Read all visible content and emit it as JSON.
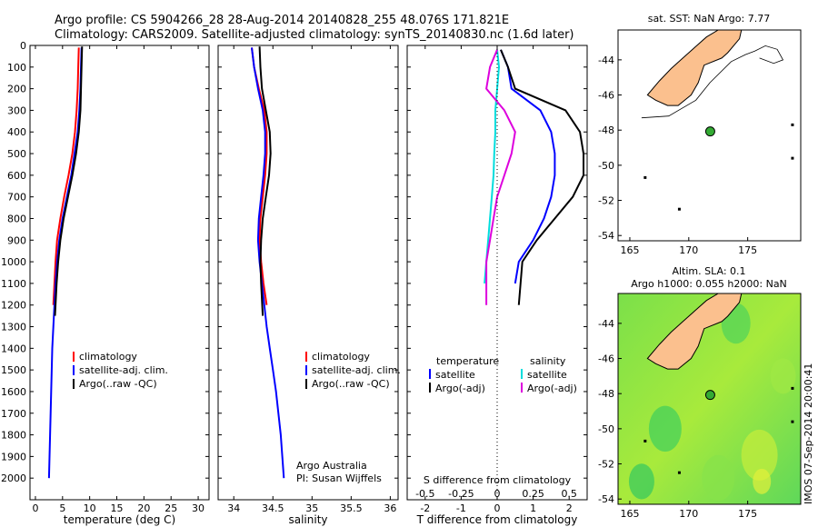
{
  "header": {
    "line1": "Argo profile: CS 5904266_28 28-Aug-2014 20140828_255 48.076S 171.821E",
    "line2": "Climatology: CARS2009. Satellite-adjusted climatology: synTS_20140830.nc (1.6d later)"
  },
  "chart_data": [
    {
      "type": "line",
      "panel": "temperature",
      "xlabel": "temperature (deg C)",
      "ylabel": "",
      "xlim": [
        -1,
        32
      ],
      "ylim": [
        2100,
        0
      ],
      "y_reversed": true,
      "xticks": [
        0,
        5,
        10,
        15,
        20,
        25,
        30
      ],
      "yticks": [
        0,
        100,
        200,
        300,
        400,
        500,
        600,
        700,
        800,
        900,
        1000,
        1100,
        1200,
        1300,
        1400,
        1500,
        1600,
        1700,
        1800,
        1900,
        2000
      ],
      "legend": [
        "climatology",
        "satellite-adj. clim.",
        "Argo(..raw -QC)"
      ],
      "series": [
        {
          "name": "climatology",
          "color": "#ff0000",
          "x": [
            8.0,
            7.9,
            7.8,
            7.6,
            7.3,
            6.8,
            6.1,
            5.3,
            4.6,
            4.0,
            3.7,
            3.5,
            3.3
          ],
          "y": [
            10,
            100,
            200,
            300,
            400,
            500,
            600,
            700,
            800,
            900,
            1000,
            1100,
            1200
          ]
        },
        {
          "name": "satellite-adj. clim.",
          "color": "#0000ff",
          "x": [
            8.5,
            8.4,
            8.3,
            8.1,
            7.8,
            7.2,
            6.6,
            5.8,
            5.0,
            4.4,
            4.0,
            3.7,
            3.5,
            3.3,
            3.1,
            3.0,
            2.9,
            2.8,
            2.7,
            2.6,
            2.5
          ],
          "y": [
            10,
            100,
            200,
            300,
            400,
            500,
            600,
            700,
            800,
            900,
            1000,
            1100,
            1200,
            1300,
            1400,
            1500,
            1600,
            1700,
            1800,
            1900,
            2000
          ]
        },
        {
          "name": "Argo(..raw -QC)",
          "color": "#000000",
          "x": [
            8.6,
            8.5,
            8.4,
            8.3,
            8.0,
            7.5,
            6.8,
            6.0,
            5.2,
            4.6,
            4.2,
            3.9,
            3.6
          ],
          "y": [
            5,
            100,
            200,
            300,
            400,
            500,
            600,
            700,
            800,
            900,
            1000,
            1100,
            1250
          ]
        }
      ]
    },
    {
      "type": "line",
      "panel": "salinity",
      "xlabel": "salinity",
      "xlim": [
        33.8,
        36.1
      ],
      "ylim": [
        2100,
        0
      ],
      "y_reversed": true,
      "xticks": [
        34,
        34.5,
        35,
        35.5,
        36
      ],
      "legend": [
        "climatology",
        "satellite-adj. clim.",
        "Argo(..raw -QC)"
      ],
      "annotation": [
        "Argo Australia",
        "PI: Susan Wijffels"
      ],
      "series": [
        {
          "name": "climatology",
          "color": "#ff0000",
          "x": [
            34.23,
            34.26,
            34.32,
            34.39,
            34.42,
            34.42,
            34.4,
            34.37,
            34.34,
            34.33,
            34.35,
            34.38,
            34.42
          ],
          "y": [
            10,
            100,
            200,
            300,
            400,
            500,
            600,
            700,
            800,
            900,
            1000,
            1100,
            1200
          ]
        },
        {
          "name": "satellite-adj. clim.",
          "color": "#0000ff",
          "x": [
            34.23,
            34.26,
            34.31,
            34.37,
            34.4,
            34.4,
            34.38,
            34.35,
            34.32,
            34.31,
            34.33,
            34.36,
            34.39,
            34.42,
            34.46,
            34.5,
            34.54,
            34.57,
            34.6,
            34.62,
            34.64
          ],
          "y": [
            10,
            100,
            200,
            300,
            400,
            500,
            600,
            700,
            800,
            900,
            1000,
            1100,
            1200,
            1300,
            1400,
            1500,
            1600,
            1700,
            1800,
            1900,
            2000
          ]
        },
        {
          "name": "Argo(..raw -QC)",
          "color": "#000000",
          "x": [
            34.33,
            34.34,
            34.36,
            34.41,
            34.46,
            34.47,
            34.45,
            34.41,
            34.37,
            34.35,
            34.34,
            34.35,
            34.37
          ],
          "y": [
            5,
            100,
            200,
            300,
            400,
            500,
            600,
            700,
            800,
            900,
            1000,
            1100,
            1250
          ]
        }
      ]
    },
    {
      "type": "line",
      "panel": "difference",
      "xlabel": "T difference from climatology",
      "xlabel_top": "S difference from climatology",
      "xlim": [
        -2.5,
        2.5
      ],
      "ylim": [
        2100,
        0
      ],
      "y_reversed": true,
      "xticks": [
        -2,
        -1,
        0,
        1,
        2
      ],
      "s_xticks": [
        "-0.5",
        "-0.25",
        "0",
        "0.25",
        "0.5"
      ],
      "legend_temperature": {
        "title": "temperature",
        "items": [
          "satellite",
          "Argo(-adj)"
        ]
      },
      "legend_salinity": {
        "title": "salinity",
        "items": [
          "satellite",
          "Argo(-adj)"
        ]
      },
      "series": [
        {
          "name": "temperature satellite",
          "color": "#0000ff",
          "x": [
            0.1,
            0.3,
            0.4,
            1.2,
            1.5,
            1.6,
            1.6,
            1.5,
            1.3,
            1.0,
            0.6,
            0.5
          ],
          "y": [
            20,
            100,
            200,
            300,
            400,
            500,
            600,
            700,
            800,
            900,
            1000,
            1100
          ]
        },
        {
          "name": "temperature Argo(-adj)",
          "color": "#000000",
          "x": [
            0.1,
            0.3,
            0.5,
            1.9,
            2.3,
            2.4,
            2.4,
            2.1,
            1.6,
            1.1,
            0.7,
            0.6
          ],
          "y": [
            20,
            100,
            200,
            300,
            400,
            500,
            600,
            700,
            800,
            900,
            1000,
            1200
          ]
        },
        {
          "name": "salinity satellite",
          "color": "#00dddd",
          "x": [
            0.0,
            0.05,
            0.0,
            -0.05,
            -0.05,
            -0.08,
            -0.1,
            -0.15,
            -0.2,
            -0.25,
            -0.3,
            -0.35
          ],
          "y": [
            20,
            100,
            200,
            300,
            400,
            500,
            600,
            700,
            800,
            900,
            1000,
            1100
          ]
        },
        {
          "name": "salinity Argo(-adj)",
          "color": "#dd00dd",
          "x": [
            0.0,
            -0.2,
            -0.3,
            0.2,
            0.5,
            0.4,
            0.2,
            0.0,
            -0.1,
            -0.2,
            -0.3,
            -0.3
          ],
          "y": [
            20,
            100,
            200,
            300,
            400,
            500,
            600,
            700,
            800,
            900,
            1000,
            1200
          ]
        }
      ]
    },
    {
      "type": "map",
      "panel": "sst-map",
      "title": "sat. SST: NaN Argo: 7.77",
      "xlim": [
        164,
        179.5
      ],
      "ylim": [
        -54.3,
        -42.3
      ],
      "xticks": [
        165,
        170,
        175
      ],
      "yticks": [
        -44,
        -46,
        -48,
        -50,
        -52,
        -54
      ],
      "argo_position": {
        "lon": 171.821,
        "lat": -48.076
      },
      "land_color": "#fbc08e"
    },
    {
      "type": "map",
      "panel": "sla-map",
      "title_line1": "Altim. SLA: 0.1",
      "title_line2": "Argo h1000: 0.055 h2000: NaN",
      "xlim": [
        164,
        179.5
      ],
      "ylim": [
        -54.3,
        -42.3
      ],
      "xticks": [
        165,
        170,
        175
      ],
      "yticks": [
        -44,
        -46,
        -48,
        -50,
        -52,
        -54
      ],
      "argo_position": {
        "lon": 171.821,
        "lat": -48.076
      },
      "watermark": "IMOS 07-Sep-2014 20:00:41"
    }
  ]
}
